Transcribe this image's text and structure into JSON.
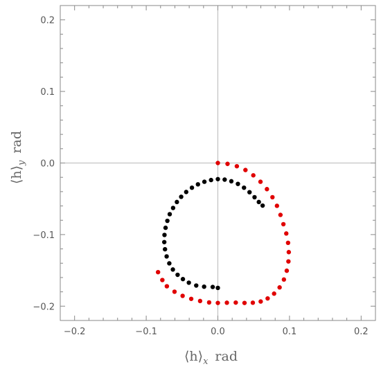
{
  "chart_data": {
    "type": "scatter",
    "xlabel_main": "⟨h⟩",
    "xlabel_sub": "x",
    "xlabel_unit": "rad",
    "ylabel_main": "⟨h⟩",
    "ylabel_sub": "y",
    "ylabel_unit": "rad",
    "xlim": [
      -0.22,
      0.22
    ],
    "ylim": [
      -0.22,
      0.22
    ],
    "ticks": [
      -0.2,
      -0.1,
      0.0,
      0.1,
      0.2
    ],
    "tick_labels": [
      "−0.2",
      "−0.1",
      "0.0",
      "0.1",
      "0.2"
    ],
    "grid": false,
    "origin_lines": true,
    "series": [
      {
        "color": "#e00000",
        "points": [
          [
            0.0,
            0.0
          ],
          [
            0.0135,
            -0.0012
          ],
          [
            0.0265,
            -0.0045
          ],
          [
            0.0385,
            -0.0098
          ],
          [
            0.0495,
            -0.0172
          ],
          [
            0.0595,
            -0.0262
          ],
          [
            0.0685,
            -0.0365
          ],
          [
            0.0762,
            -0.0478
          ],
          [
            0.0825,
            -0.0598
          ],
          [
            0.0874,
            -0.0725
          ],
          [
            0.0915,
            -0.0855
          ],
          [
            0.0955,
            -0.0985
          ],
          [
            0.098,
            -0.1115
          ],
          [
            0.099,
            -0.1245
          ],
          [
            0.0985,
            -0.1375
          ],
          [
            0.0962,
            -0.1505
          ],
          [
            0.0922,
            -0.1628
          ],
          [
            0.0862,
            -0.1738
          ],
          [
            0.0785,
            -0.1825
          ],
          [
            0.0695,
            -0.1892
          ],
          [
            0.0598,
            -0.1935
          ],
          [
            0.0488,
            -0.1952
          ],
          [
            0.0372,
            -0.1955
          ],
          [
            0.025,
            -0.195
          ],
          [
            0.0126,
            -0.1952
          ],
          [
            0.0,
            -0.1955
          ],
          [
            -0.0122,
            -0.1948
          ],
          [
            -0.0248,
            -0.1928
          ],
          [
            -0.0372,
            -0.1898
          ],
          [
            -0.0492,
            -0.1856
          ],
          [
            -0.0605,
            -0.1798
          ],
          [
            -0.0712,
            -0.1722
          ],
          [
            -0.0775,
            -0.1635
          ],
          [
            -0.0835,
            -0.1525
          ]
        ]
      },
      {
        "color": "#000000",
        "points": [
          [
            0.0,
            -0.0225
          ],
          [
            -0.0095,
            -0.0238
          ],
          [
            -0.0188,
            -0.0262
          ],
          [
            -0.0278,
            -0.0298
          ],
          [
            -0.0362,
            -0.0345
          ],
          [
            -0.0442,
            -0.0405
          ],
          [
            -0.0512,
            -0.0472
          ],
          [
            -0.0572,
            -0.0545
          ],
          [
            -0.0625,
            -0.0628
          ],
          [
            -0.0672,
            -0.0715
          ],
          [
            -0.0705,
            -0.0808
          ],
          [
            -0.073,
            -0.0905
          ],
          [
            -0.0745,
            -0.1005
          ],
          [
            -0.0748,
            -0.1105
          ],
          [
            -0.0738,
            -0.1205
          ],
          [
            -0.0715,
            -0.1305
          ],
          [
            -0.0678,
            -0.1402
          ],
          [
            -0.0628,
            -0.1488
          ],
          [
            -0.0562,
            -0.1562
          ],
          [
            -0.0488,
            -0.1622
          ],
          [
            -0.0405,
            -0.1672
          ],
          [
            -0.0302,
            -0.1712
          ],
          [
            -0.0192,
            -0.1728
          ],
          [
            -0.0072,
            -0.1732
          ],
          [
            0.0,
            -0.1745
          ],
          [
            0.0095,
            -0.0232
          ],
          [
            0.0188,
            -0.0255
          ],
          [
            0.028,
            -0.0292
          ],
          [
            0.0365,
            -0.0345
          ],
          [
            0.0442,
            -0.0408
          ],
          [
            0.0512,
            -0.0478
          ],
          [
            0.0572,
            -0.0545
          ],
          [
            0.0625,
            -0.0595
          ]
        ]
      }
    ]
  }
}
